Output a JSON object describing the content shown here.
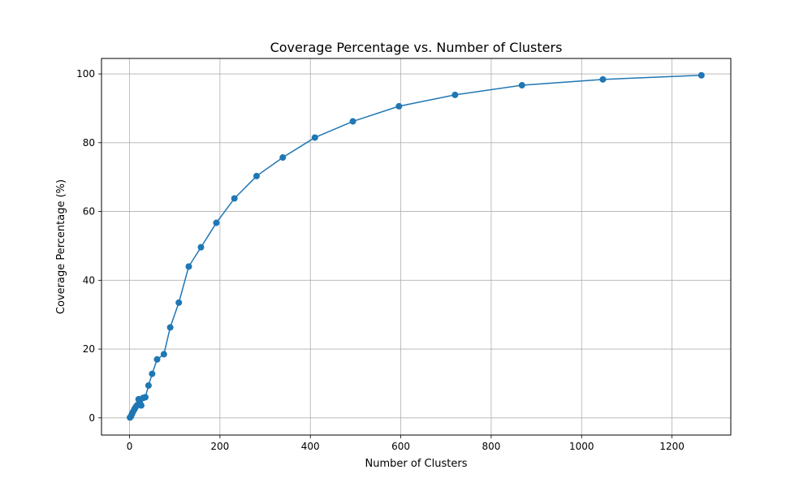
{
  "chart_data": {
    "type": "line",
    "title": "Coverage Percentage vs. Number of Clusters",
    "xlabel": "Number of Clusters",
    "ylabel": "Coverage Percentage (%)",
    "xlim": [
      -62,
      1330
    ],
    "ylim": [
      -5,
      104.5
    ],
    "xticks": [
      0,
      200,
      400,
      600,
      800,
      1000,
      1200
    ],
    "yticks": [
      0,
      20,
      40,
      60,
      80,
      100
    ],
    "grid": true,
    "legend": "none",
    "series": [
      {
        "color": "#1f77b4",
        "marker": "circle",
        "x": [
          1,
          3,
          5,
          7,
          10,
          12,
          15,
          18,
          20,
          23,
          26,
          30,
          35,
          42,
          50,
          61,
          76,
          90,
          109,
          131,
          158,
          192,
          232,
          281,
          339,
          410,
          494,
          596,
          720,
          868,
          1047,
          1265
        ],
        "y": [
          0.1,
          0.4,
          1.0,
          1.6,
          2.3,
          2.8,
          3.4,
          3.8,
          5.4,
          4.4,
          3.6,
          5.8,
          6.0,
          9.4,
          12.8,
          17.0,
          18.5,
          26.3,
          33.5,
          44.0,
          49.6,
          56.7,
          63.8,
          70.3,
          75.7,
          81.5,
          86.2,
          90.6,
          93.9,
          96.7,
          98.4,
          99.6
        ]
      }
    ]
  }
}
